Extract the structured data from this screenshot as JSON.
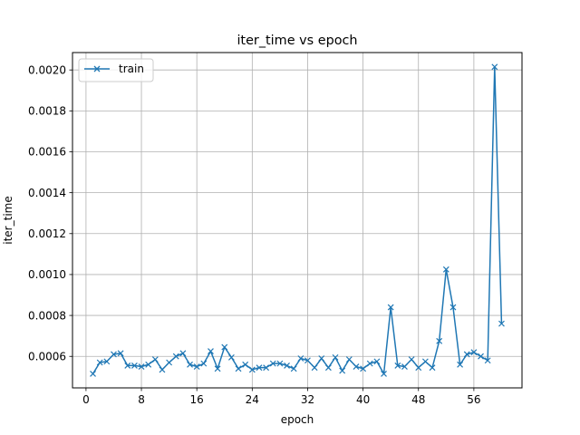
{
  "chart_data": {
    "type": "line",
    "title": "iter_time vs epoch",
    "xlabel": "epoch",
    "ylabel": "iter_time",
    "xlim": [
      -1.95,
      62.95
    ],
    "ylim": [
      0.000446,
      0.002085
    ],
    "xticks": [
      0,
      8,
      16,
      24,
      32,
      40,
      48,
      56
    ],
    "yticks": [
      0.0006,
      0.0008,
      0.001,
      0.0012,
      0.0014,
      0.0016,
      0.0018,
      0.002
    ],
    "ytick_labels": [
      "0.0006",
      "0.0008",
      "0.0010",
      "0.0012",
      "0.0014",
      "0.0016",
      "0.0018",
      "0.0020"
    ],
    "grid": true,
    "legend": {
      "location": "upper-left",
      "entries": [
        "train"
      ]
    },
    "series": [
      {
        "name": "train",
        "color": "#1f77b4",
        "marker": "x",
        "x": [
          1,
          2,
          3,
          4,
          5,
          6,
          7,
          8,
          9,
          10,
          11,
          12,
          13,
          14,
          15,
          16,
          17,
          18,
          19,
          20,
          21,
          22,
          23,
          24,
          25,
          26,
          27,
          28,
          29,
          30,
          31,
          32,
          33,
          34,
          35,
          36,
          37,
          38,
          39,
          40,
          41,
          42,
          43,
          44,
          45,
          46,
          47,
          48,
          49,
          50,
          51,
          52,
          53,
          54,
          55,
          56,
          57,
          58,
          59,
          60
        ],
        "y": [
          0.000515,
          0.00057,
          0.000575,
          0.00061,
          0.000615,
          0.000555,
          0.000555,
          0.00055,
          0.00056,
          0.000585,
          0.000535,
          0.00057,
          0.0006,
          0.000615,
          0.00056,
          0.00055,
          0.000565,
          0.000625,
          0.00054,
          0.000645,
          0.000595,
          0.00054,
          0.00056,
          0.000535,
          0.000545,
          0.000545,
          0.000565,
          0.000565,
          0.000555,
          0.00054,
          0.00059,
          0.00058,
          0.000545,
          0.00059,
          0.000545,
          0.000595,
          0.00053,
          0.000585,
          0.00055,
          0.00054,
          0.000565,
          0.000575,
          0.000515,
          0.00084,
          0.000555,
          0.00055,
          0.000585,
          0.000545,
          0.000575,
          0.000545,
          0.000675,
          0.001025,
          0.00084,
          0.00056,
          0.00061,
          0.00062,
          0.0006,
          0.00058,
          0.002015,
          0.00076
        ]
      }
    ]
  }
}
